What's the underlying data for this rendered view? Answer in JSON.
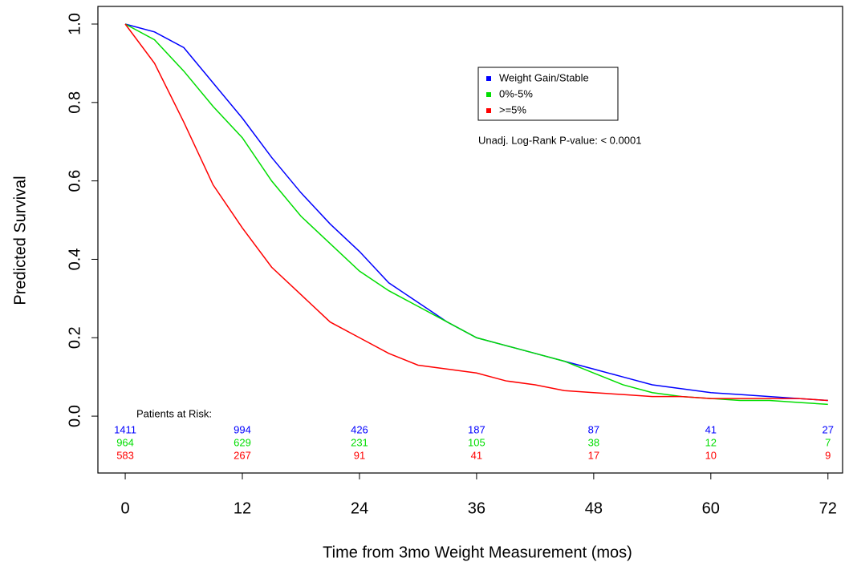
{
  "chart_data": {
    "type": "line",
    "xlabel": "Time from 3mo Weight Measurement (mos)",
    "ylabel": "Predicted Survival",
    "annotation": "Unadj. Log-Rank P-value: < 0.0001",
    "xlim": [
      -2.8,
      73.5
    ],
    "ylim": [
      -0.145,
      1.045
    ],
    "xticks": [
      0,
      12,
      24,
      36,
      48,
      60,
      72
    ],
    "yticks": [
      {
        "value": 0,
        "label": "0.0"
      },
      0.2,
      0.4,
      0.6,
      0.8,
      {
        "value": 1,
        "label": "1.0"
      }
    ],
    "x": [
      0,
      3,
      6,
      9,
      12,
      15,
      18,
      21,
      24,
      27,
      30,
      33,
      36,
      39,
      42,
      45,
      48,
      51,
      54,
      57,
      60,
      63,
      66,
      69,
      72
    ],
    "series": [
      {
        "name": "Weight Gain/Stable",
        "color": "#0000ff",
        "values": [
          1.0,
          0.98,
          0.94,
          0.85,
          0.76,
          0.66,
          0.57,
          0.49,
          0.42,
          0.34,
          0.29,
          0.24,
          0.2,
          0.18,
          0.16,
          0.14,
          0.12,
          0.1,
          0.08,
          0.07,
          0.06,
          0.055,
          0.05,
          0.045,
          0.04
        ]
      },
      {
        "name": "0%-5%",
        "color": "#00dd00",
        "values": [
          1.0,
          0.96,
          0.88,
          0.79,
          0.71,
          0.6,
          0.51,
          0.44,
          0.37,
          0.32,
          0.28,
          0.24,
          0.2,
          0.18,
          0.16,
          0.14,
          0.11,
          0.08,
          0.06,
          0.05,
          0.045,
          0.04,
          0.04,
          0.035,
          0.03
        ]
      },
      {
        "name": ">=5%",
        "color": "#ff0000",
        "values": [
          1.0,
          0.9,
          0.75,
          0.59,
          0.48,
          0.38,
          0.31,
          0.24,
          0.2,
          0.16,
          0.13,
          0.12,
          0.11,
          0.09,
          0.08,
          0.065,
          0.06,
          0.055,
          0.05,
          0.05,
          0.045,
          0.045,
          0.045,
          0.045,
          0.04
        ]
      }
    ],
    "risk_table": {
      "label": "Patients at Risk:",
      "rows": [
        {
          "color": "#0000ff",
          "values": [
            1411,
            994,
            426,
            187,
            87,
            41,
            27
          ]
        },
        {
          "color": "#00dd00",
          "values": [
            964,
            629,
            231,
            105,
            38,
            12,
            7
          ]
        },
        {
          "color": "#ff0000",
          "values": [
            583,
            267,
            91,
            41,
            17,
            10,
            9
          ]
        }
      ]
    }
  }
}
